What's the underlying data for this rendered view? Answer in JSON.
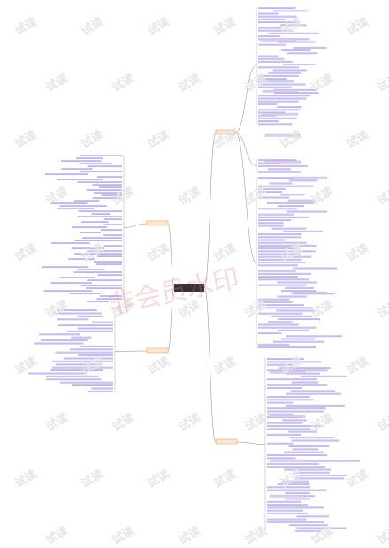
{
  "watermark": "试读",
  "overlay_watermark": "非会员水印"
}
